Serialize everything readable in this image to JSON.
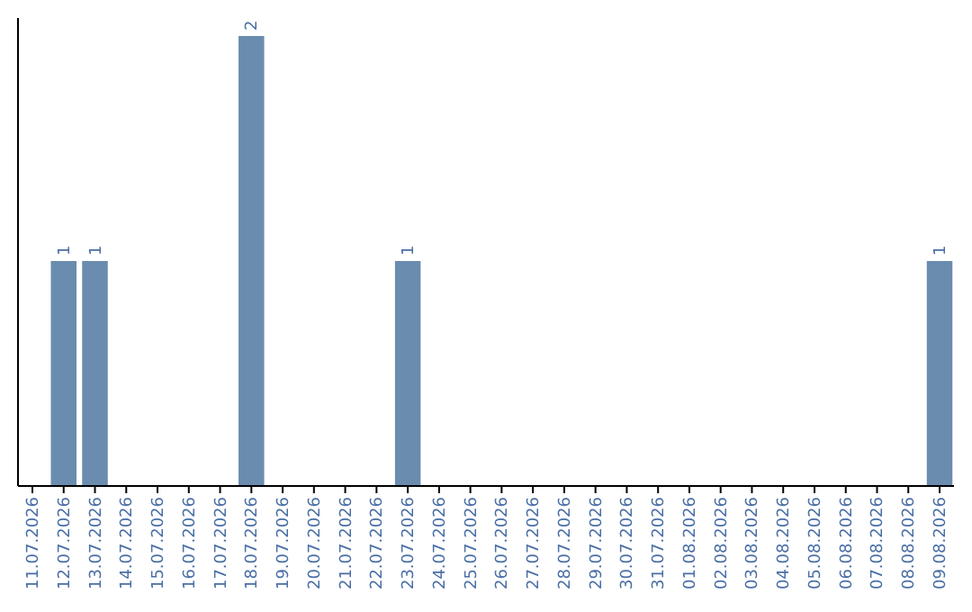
{
  "chart_data": {
    "type": "bar",
    "categories": [
      "11.07.2026",
      "12.07.2026",
      "13.07.2026",
      "14.07.2026",
      "15.07.2026",
      "16.07.2026",
      "17.07.2026",
      "18.07.2026",
      "19.07.2026",
      "20.07.2026",
      "21.07.2026",
      "22.07.2026",
      "23.07.2026",
      "24.07.2026",
      "25.07.2026",
      "26.07.2026",
      "27.07.2026",
      "28.07.2026",
      "29.07.2026",
      "30.07.2026",
      "31.07.2026",
      "01.08.2026",
      "02.08.2026",
      "03.08.2026",
      "04.08.2026",
      "05.08.2026",
      "06.08.2026",
      "07.08.2026",
      "08.08.2026",
      "09.08.2026"
    ],
    "values": [
      0,
      1,
      1,
      0,
      0,
      0,
      0,
      2,
      0,
      0,
      0,
      0,
      1,
      0,
      0,
      0,
      0,
      0,
      0,
      0,
      0,
      0,
      0,
      0,
      0,
      0,
      0,
      0,
      0,
      1
    ],
    "value_labels": [
      null,
      "1",
      "1",
      null,
      null,
      null,
      null,
      "2",
      null,
      null,
      null,
      null,
      "1",
      null,
      null,
      null,
      null,
      null,
      null,
      null,
      null,
      null,
      null,
      null,
      null,
      null,
      null,
      null,
      null,
      "1"
    ],
    "color": "#6a8caf",
    "tick_labels": "x"
  }
}
